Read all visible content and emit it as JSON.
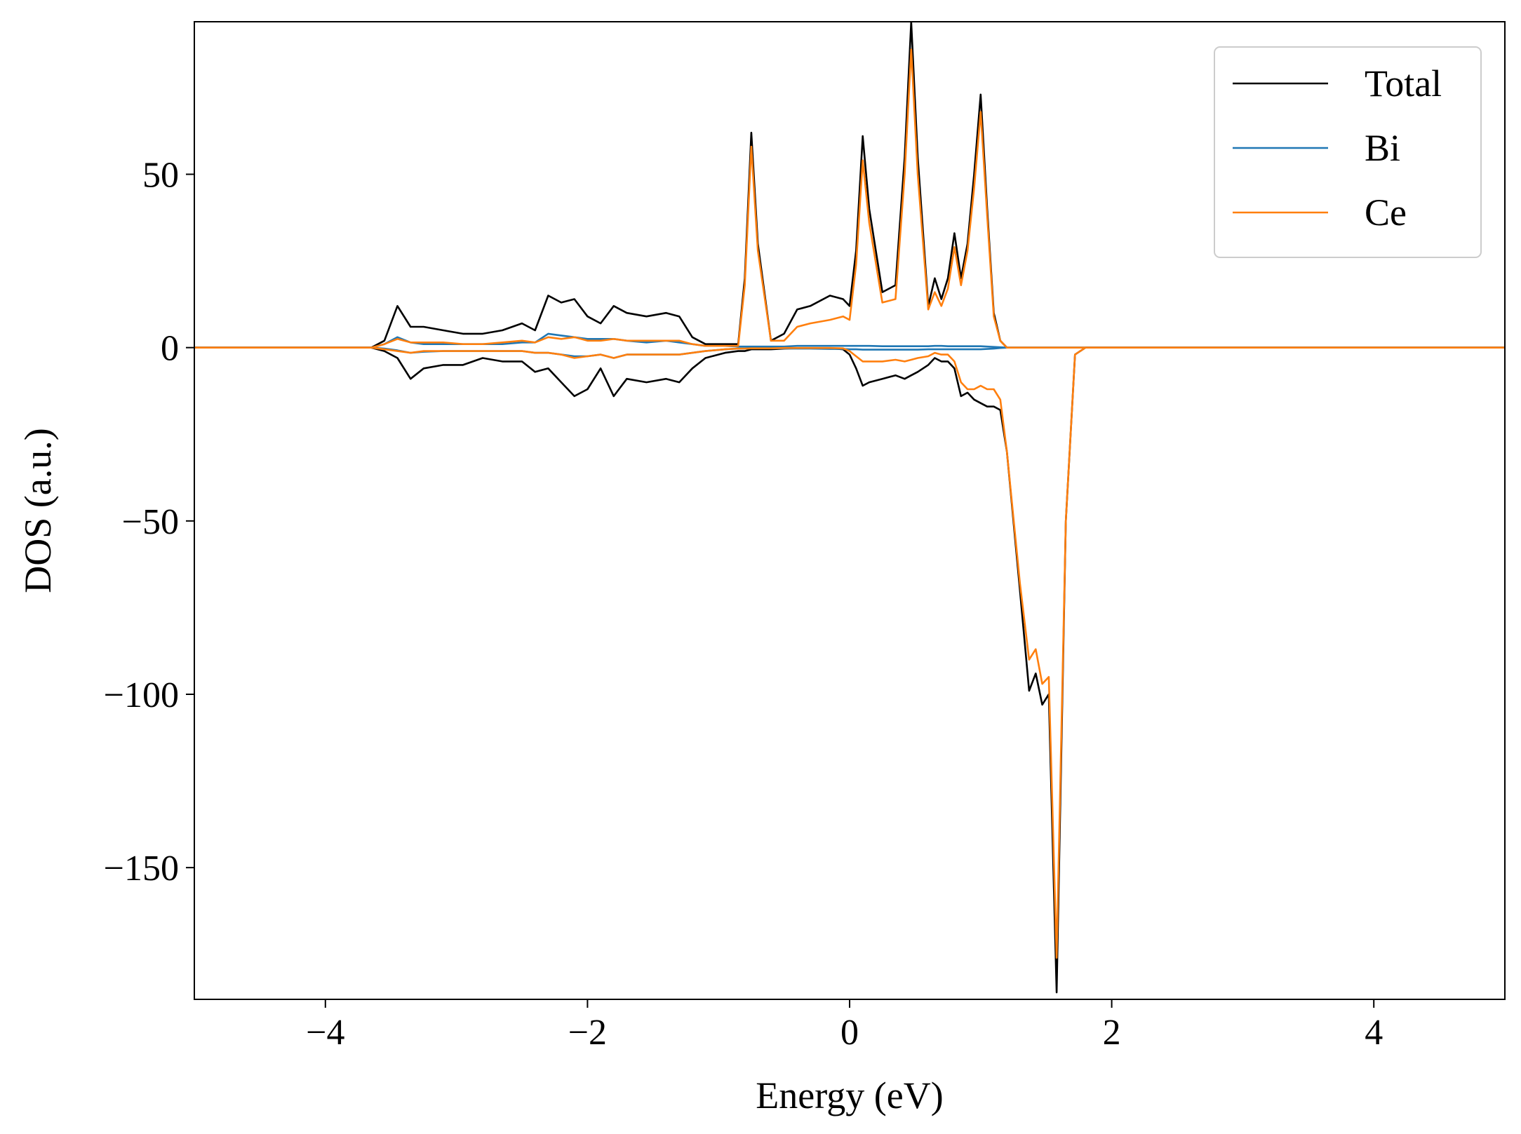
{
  "chart_data": {
    "type": "line",
    "xlabel": "Energy (eV)",
    "ylabel": "DOS (a.u.)",
    "xlim": [
      -5,
      5
    ],
    "ylim": [
      -188,
      94
    ],
    "xticks": [
      {
        "value": -4,
        "label": "−4"
      },
      {
        "value": -2,
        "label": "−2"
      },
      0,
      2,
      4
    ],
    "yticks": [
      {
        "value": -150,
        "label": "−150"
      },
      {
        "value": -100,
        "label": "−100"
      },
      {
        "value": -50,
        "label": "−50"
      },
      0,
      50
    ],
    "grid": false,
    "legend": "upper right",
    "x": [
      -5,
      -3.65,
      -3.55,
      -3.45,
      -3.35,
      -3.25,
      -3.1,
      -2.95,
      -2.8,
      -2.65,
      -2.5,
      -2.4,
      -2.3,
      -2.2,
      -2.1,
      -2.0,
      -1.9,
      -1.8,
      -1.7,
      -1.55,
      -1.4,
      -1.3,
      -1.2,
      -1.1,
      -0.95,
      -0.85,
      -0.8,
      -0.75,
      -0.7,
      -0.6,
      -0.5,
      -0.4,
      -0.3,
      -0.15,
      -0.05,
      0,
      0.05,
      0.1,
      0.15,
      0.25,
      0.35,
      0.42,
      0.47,
      0.52,
      0.6,
      0.65,
      0.7,
      0.75,
      0.8,
      0.85,
      0.9,
      0.95,
      1.0,
      1.05,
      1.1,
      1.15,
      1.2,
      1.3,
      1.37,
      1.42,
      1.47,
      1.52,
      1.58,
      1.65,
      1.72,
      1.8,
      5
    ],
    "series": [
      {
        "name": "Total",
        "color": "#000000",
        "values": [
          0,
          0,
          2,
          12,
          6,
          6,
          5,
          4,
          4,
          5,
          7,
          5,
          15,
          13,
          14,
          9,
          7,
          12,
          10,
          9,
          10,
          9,
          3,
          1,
          1,
          1,
          20,
          62,
          30,
          2,
          4,
          11,
          12,
          15,
          14,
          12,
          28,
          61,
          40,
          16,
          18,
          55,
          94,
          55,
          12,
          20,
          14,
          20,
          33,
          20,
          30,
          50,
          73,
          40,
          10,
          2,
          0,
          0,
          0,
          0,
          0,
          0,
          0,
          0,
          0,
          0,
          0
        ],
        "values_down": [
          0,
          0,
          -1,
          -3,
          -9,
          -6,
          -5,
          -5,
          -3,
          -4,
          -4,
          -7,
          -6,
          -10,
          -14,
          -12,
          -6,
          -14,
          -9,
          -10,
          -9,
          -10,
          -6,
          -3,
          -1.5,
          -1,
          -1,
          -0.5,
          -0.5,
          -0.5,
          -0.3,
          -0.2,
          -0.2,
          -0.2,
          -0.5,
          -2,
          -6,
          -11,
          -10,
          -9,
          -8,
          -9,
          -8,
          -7,
          -5,
          -3,
          -4,
          -4,
          -6,
          -14,
          -13,
          -15,
          -16,
          -17,
          -17,
          -18,
          -30,
          -70,
          -99,
          -94,
          -103,
          -100,
          -186,
          -50,
          -2,
          0,
          0
        ]
      },
      {
        "name": "Bi",
        "color": "#1f77b4",
        "values": [
          0,
          0,
          1,
          3,
          1.5,
          1,
          1,
          1,
          1,
          1,
          1.5,
          1.5,
          4,
          3.5,
          3,
          2.5,
          2.5,
          2.5,
          2,
          1.5,
          2,
          1.5,
          1,
          0.5,
          0.5,
          0.3,
          0.3,
          0.3,
          0.3,
          0.3,
          0.3,
          0.5,
          0.5,
          0.5,
          0.5,
          0.5,
          0.5,
          0.5,
          0.5,
          0.4,
          0.4,
          0.4,
          0.4,
          0.4,
          0.4,
          0.5,
          0.5,
          0.4,
          0.4,
          0.4,
          0.4,
          0.4,
          0.4,
          0.3,
          0.2,
          0.1,
          0,
          0,
          0,
          0,
          0,
          0,
          0,
          0,
          0,
          0,
          0
        ],
        "values_down": [
          0,
          0,
          -0.3,
          -0.8,
          -1.5,
          -1.2,
          -1,
          -1,
          -1,
          -1,
          -1,
          -1.5,
          -1.5,
          -2,
          -2.5,
          -2.5,
          -2,
          -3,
          -2,
          -2,
          -2,
          -2,
          -1.5,
          -1,
          -0.5,
          -0.3,
          -0.3,
          -0.2,
          -0.2,
          -0.2,
          -0.2,
          -0.3,
          -0.3,
          -0.4,
          -0.4,
          -0.5,
          -0.5,
          -0.6,
          -0.6,
          -0.6,
          -0.6,
          -0.6,
          -0.6,
          -0.6,
          -0.5,
          -0.5,
          -0.5,
          -0.5,
          -0.5,
          -0.5,
          -0.5,
          -0.5,
          -0.5,
          -0.4,
          -0.3,
          -0.1,
          0,
          0,
          0,
          0,
          0,
          0,
          0,
          0,
          0,
          0,
          0
        ]
      },
      {
        "name": "Ce",
        "color": "#ff7f0e",
        "values": [
          0,
          0,
          1,
          2.5,
          1.5,
          1.5,
          1.5,
          1,
          1,
          1.5,
          2,
          1.5,
          3,
          2.5,
          3,
          2,
          2,
          2.5,
          2,
          2,
          2,
          2,
          1,
          0.5,
          0.5,
          0.5,
          18,
          58,
          28,
          2,
          2,
          6,
          7,
          8,
          9,
          8,
          24,
          54,
          36,
          13,
          14,
          50,
          86,
          50,
          11,
          16,
          12,
          17,
          29,
          18,
          28,
          46,
          68,
          38,
          9,
          2,
          0,
          0,
          0,
          0,
          0,
          0,
          0,
          0,
          0,
          0,
          0
        ],
        "values_down": [
          0,
          0,
          -0.5,
          -1,
          -1.5,
          -1,
          -1,
          -1,
          -1,
          -1,
          -1,
          -1.5,
          -1.5,
          -2,
          -3,
          -2.5,
          -2,
          -3,
          -2,
          -2,
          -2,
          -2,
          -1.5,
          -1,
          -0.5,
          -0.3,
          -0.3,
          -0.2,
          -0.2,
          -0.2,
          -0.1,
          -0.1,
          -0.1,
          -0.1,
          -0.2,
          -1,
          -2.5,
          -4,
          -4,
          -4,
          -3.5,
          -4,
          -3.5,
          -3,
          -2.5,
          -1.5,
          -2,
          -2,
          -4,
          -10,
          -12,
          -12,
          -11,
          -12,
          -12,
          -15,
          -30,
          -68,
          -90,
          -87,
          -97,
          -95,
          -176,
          -50,
          -2,
          0,
          0
        ]
      }
    ]
  }
}
